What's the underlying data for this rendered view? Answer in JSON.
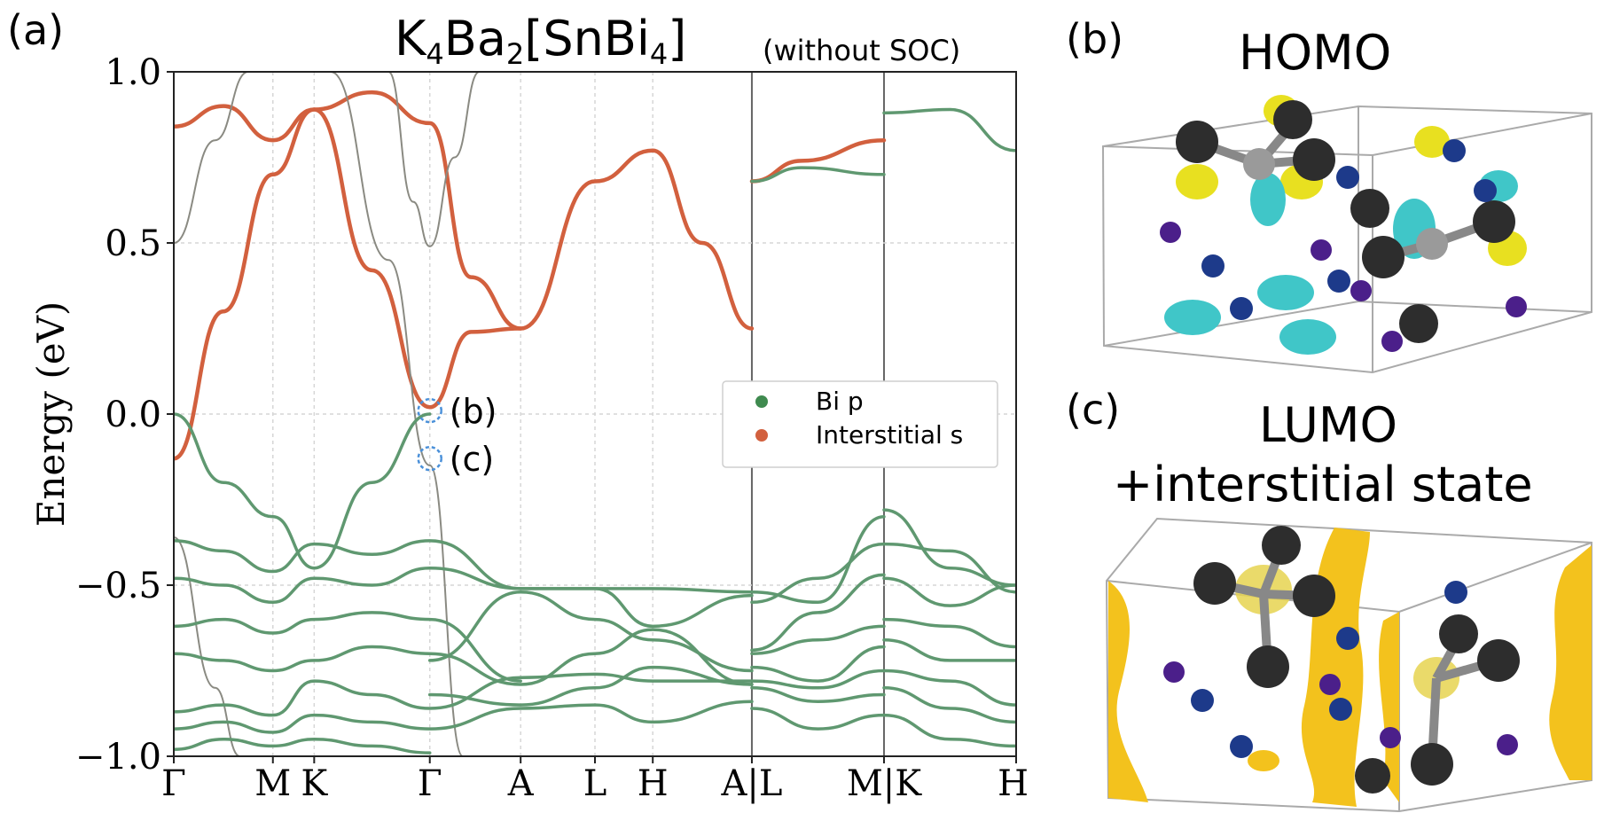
{
  "panel_labels": {
    "a": "(a)",
    "b": "(b)",
    "c": "(c)"
  },
  "chart_title": {
    "formula_main": "K",
    "formula_sub1": "4",
    "formula_ba": "Ba",
    "formula_sub2": "2",
    "formula_bracket": "[SnBi",
    "formula_sub3": "4",
    "formula_close": "]",
    "note": "(without SOC)"
  },
  "markers": {
    "b": "(b)",
    "c": "(c)"
  },
  "homo_title": "HOMO",
  "lumo_title_1": "LUMO",
  "lumo_title_2": "+interstitial state",
  "colors": {
    "bi_p": "#3f8a4f",
    "interstitial_s": "#d2603e",
    "line_green": "#5f9870",
    "line_gray": "#8a8a82",
    "marker_circle": "#4a90d9"
  },
  "chart_data": {
    "type": "line",
    "ylabel": "Energy (eV)",
    "ylim": [
      -1.0,
      1.0
    ],
    "yticks": [
      -1.0,
      -0.5,
      0.0,
      0.5,
      1.0
    ],
    "ytick_labels": [
      "−1.0",
      "−0.5",
      "0.0",
      "0.5",
      "1.0"
    ],
    "kpath_ticks": [
      0,
      0.6,
      0.85,
      1.55,
      2.1,
      2.55,
      2.9,
      3.5,
      4.3,
      5.1
    ],
    "kpath_labels": [
      "Γ",
      "M",
      "K",
      "Γ",
      "A",
      "L",
      "H",
      "A|L",
      "M|K",
      "H"
    ],
    "xlim": [
      0,
      5.1
    ],
    "grid": true,
    "legend": {
      "position": "center-right",
      "entries": [
        {
          "label": "Bi p",
          "color": "#3f8a4f"
        },
        {
          "label": "Interstitial s",
          "color": "#d2603e"
        }
      ]
    },
    "series": [
      {
        "kind": "interstitial",
        "x": [
          0,
          0.3,
          0.6,
          0.85,
          1.2,
          1.55,
          1.8,
          2.1,
          2.55,
          2.9,
          3.2,
          3.5
        ],
        "y": [
          -0.13,
          0.3,
          0.7,
          0.89,
          0.42,
          0.02,
          0.24,
          0.25,
          0.68,
          0.77,
          0.5,
          0.25
        ]
      },
      {
        "kind": "interstitial",
        "x": [
          0,
          0.3,
          0.6,
          0.85,
          1.2,
          1.55,
          1.8,
          2.1
        ],
        "y": [
          0.84,
          0.9,
          0.8,
          0.89,
          0.94,
          0.85,
          0.4,
          0.25
        ]
      },
      {
        "kind": "interstitial",
        "x": [
          3.5,
          3.8,
          4.3
        ],
        "y": [
          0.68,
          0.74,
          0.8
        ]
      },
      {
        "kind": "gray",
        "x": [
          0,
          0.25,
          0.45
        ],
        "y": [
          0.5,
          0.8,
          1.0
        ]
      },
      {
        "kind": "gray",
        "x": [
          1.3,
          1.45,
          1.55,
          1.7,
          1.85
        ],
        "y": [
          1.0,
          0.62,
          0.49,
          0.75,
          1.0
        ]
      },
      {
        "kind": "gray",
        "x": [
          0.95,
          1.3,
          1.55,
          1.75
        ],
        "y": [
          1.0,
          0.45,
          -0.15,
          -1.0
        ]
      },
      {
        "kind": "gray",
        "x": [
          0,
          0.25,
          0.4
        ],
        "y": [
          -0.36,
          -0.8,
          -1.0
        ]
      },
      {
        "kind": "green",
        "x": [
          0,
          0.3,
          0.6,
          0.85,
          1.2,
          1.55
        ],
        "y": [
          0.0,
          -0.2,
          -0.3,
          -0.45,
          -0.2,
          0.0
        ]
      },
      {
        "kind": "green",
        "x": [
          0,
          0.3,
          0.6,
          0.85,
          1.2,
          1.55,
          2.1
        ],
        "y": [
          -0.37,
          -0.4,
          -0.46,
          -0.38,
          -0.41,
          -0.37,
          -0.51
        ]
      },
      {
        "kind": "green",
        "x": [
          0,
          0.3,
          0.6,
          0.85,
          1.2,
          1.55,
          2.1,
          2.55,
          2.9,
          3.5
        ],
        "y": [
          -0.48,
          -0.5,
          -0.55,
          -0.48,
          -0.5,
          -0.45,
          -0.51,
          -0.51,
          -0.51,
          -0.52
        ]
      },
      {
        "kind": "green",
        "x": [
          0,
          0.3,
          0.6,
          0.85,
          1.2,
          1.55,
          2.1
        ],
        "y": [
          -0.62,
          -0.6,
          -0.64,
          -0.6,
          -0.58,
          -0.6,
          -0.78
        ]
      },
      {
        "kind": "green",
        "x": [
          0,
          0.3,
          0.6,
          0.85,
          1.2,
          1.55,
          2.1,
          2.55,
          2.9,
          3.5
        ],
        "y": [
          -0.7,
          -0.72,
          -0.75,
          -0.72,
          -0.68,
          -0.7,
          -0.79,
          -0.7,
          -0.63,
          -0.79
        ]
      },
      {
        "kind": "green",
        "x": [
          0,
          0.3,
          0.6,
          0.85,
          1.2,
          1.55,
          2.1,
          2.55,
          2.9,
          3.5
        ],
        "y": [
          -0.87,
          -0.85,
          -0.88,
          -0.78,
          -0.82,
          -0.86,
          -0.77,
          -0.76,
          -0.78,
          -0.78
        ]
      },
      {
        "kind": "green",
        "x": [
          0,
          0.3,
          0.6,
          0.85,
          1.2,
          1.55,
          2.1,
          2.55,
          2.9,
          3.5
        ],
        "y": [
          -0.92,
          -0.9,
          -0.93,
          -0.88,
          -0.9,
          -0.92,
          -0.86,
          -0.85,
          -0.9,
          -0.84
        ]
      },
      {
        "kind": "green",
        "x": [
          0,
          0.3,
          0.6,
          0.85,
          1.2,
          1.55
        ],
        "y": [
          -0.98,
          -0.95,
          -0.97,
          -0.95,
          -0.97,
          -0.99
        ]
      },
      {
        "kind": "green",
        "x": [
          1.55,
          2.1,
          2.55,
          2.9,
          3.5
        ],
        "y": [
          -0.82,
          -0.85,
          -0.8,
          -0.74,
          -0.79
        ]
      },
      {
        "kind": "green",
        "x": [
          1.55,
          2.1,
          2.55,
          2.9,
          3.5
        ],
        "y": [
          -0.72,
          -0.52,
          -0.6,
          -0.66,
          -0.75
        ]
      },
      {
        "kind": "green",
        "x": [
          2.1,
          2.55,
          2.9,
          3.5
        ],
        "y": [
          -0.51,
          -0.51,
          -0.62,
          -0.53
        ]
      },
      {
        "kind": "green",
        "x": [
          3.5,
          3.8,
          4.3
        ],
        "y": [
          0.68,
          0.72,
          0.7
        ]
      },
      {
        "kind": "green",
        "x": [
          4.3,
          4.7,
          5.1
        ],
        "y": [
          0.88,
          0.89,
          0.77
        ]
      },
      {
        "kind": "green",
        "x": [
          3.5,
          3.9,
          4.3
        ],
        "y": [
          -0.52,
          -0.55,
          -0.3
        ]
      },
      {
        "kind": "green",
        "x": [
          3.5,
          3.9,
          4.3
        ],
        "y": [
          -0.55,
          -0.48,
          -0.38
        ]
      },
      {
        "kind": "green",
        "x": [
          3.5,
          3.9,
          4.3
        ],
        "y": [
          -0.69,
          -0.58,
          -0.47
        ]
      },
      {
        "kind": "green",
        "x": [
          3.5,
          3.9,
          4.3
        ],
        "y": [
          -0.7,
          -0.66,
          -0.62
        ]
      },
      {
        "kind": "green",
        "x": [
          3.5,
          3.9,
          4.3
        ],
        "y": [
          -0.74,
          -0.78,
          -0.68
        ]
      },
      {
        "kind": "green",
        "x": [
          3.5,
          3.9,
          4.3
        ],
        "y": [
          -0.78,
          -0.8,
          -0.75
        ]
      },
      {
        "kind": "green",
        "x": [
          3.5,
          3.9,
          4.3
        ],
        "y": [
          -0.8,
          -0.84,
          -0.82
        ]
      },
      {
        "kind": "green",
        "x": [
          3.5,
          3.9,
          4.3
        ],
        "y": [
          -0.86,
          -0.92,
          -0.88
        ]
      },
      {
        "kind": "green",
        "x": [
          4.3,
          4.7,
          5.1
        ],
        "y": [
          -0.28,
          -0.45,
          -0.5
        ]
      },
      {
        "kind": "green",
        "x": [
          4.3,
          4.7,
          5.1
        ],
        "y": [
          -0.38,
          -0.4,
          -0.52
        ]
      },
      {
        "kind": "green",
        "x": [
          4.3,
          4.7,
          5.1
        ],
        "y": [
          -0.48,
          -0.56,
          -0.5
        ]
      },
      {
        "kind": "green",
        "x": [
          4.3,
          4.7,
          5.1
        ],
        "y": [
          -0.6,
          -0.62,
          -0.68
        ]
      },
      {
        "kind": "green",
        "x": [
          4.3,
          4.7,
          5.1
        ],
        "y": [
          -0.66,
          -0.72,
          -0.72
        ]
      },
      {
        "kind": "green",
        "x": [
          4.3,
          4.7,
          5.1
        ],
        "y": [
          -0.75,
          -0.78,
          -0.85
        ]
      },
      {
        "kind": "green",
        "x": [
          4.3,
          4.7,
          5.1
        ],
        "y": [
          -0.8,
          -0.86,
          -0.9
        ]
      },
      {
        "kind": "green",
        "x": [
          4.3,
          4.7,
          5.1
        ],
        "y": [
          -0.88,
          -0.95,
          -0.97
        ]
      }
    ],
    "marker_points": [
      {
        "label": "(b)",
        "x": 1.55,
        "y": 0.01
      },
      {
        "label": "(c)",
        "x": 1.55,
        "y": -0.13
      }
    ]
  }
}
